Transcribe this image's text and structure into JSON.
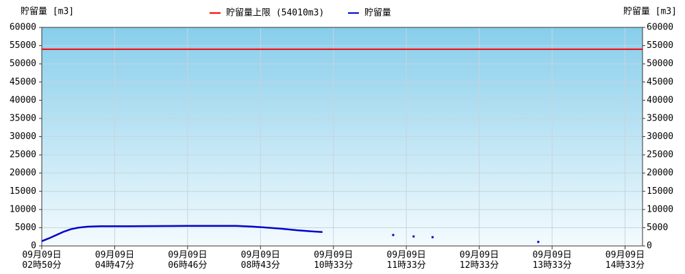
{
  "chart_data": {
    "type": "line",
    "y_label": "貯留量 [m3]",
    "y2_label": "貯留量 [m3]",
    "limit": {
      "name": "貯留量上限 (54010m3)",
      "value": 54010,
      "color": "#ff0000"
    },
    "x": [
      0,
      10,
      20,
      30,
      40,
      50,
      63,
      80,
      120,
      160,
      200,
      240,
      267,
      290,
      310,
      330,
      350,
      370,
      385,
      386,
      482,
      483,
      510,
      511,
      536,
      537,
      681
    ],
    "series": [
      {
        "name": "貯留量",
        "color": "#0000cc",
        "values": [
          1300,
          2100,
          3000,
          3900,
          4600,
          5000,
          5300,
          5400,
          5400,
          5450,
          5500,
          5500,
          5500,
          5300,
          5000,
          4700,
          4300,
          4000,
          3800,
          null,
          3000,
          null,
          2600,
          null,
          2400,
          null,
          1100
        ]
      }
    ],
    "xlim": [
      0,
      824
    ],
    "xticks": [
      {
        "value": 0,
        "label": "09月09日\n02時50分"
      },
      {
        "value": 100,
        "label": "09月09日\n04時47分"
      },
      {
        "value": 200,
        "label": "09月09日\n06時46分"
      },
      {
        "value": 300,
        "label": "09月09日\n08時43分"
      },
      {
        "value": 400,
        "label": "09月09日\n10時33分"
      },
      {
        "value": 500,
        "label": "09月09日\n11時33分"
      },
      {
        "value": 600,
        "label": "09月09日\n12時33分"
      },
      {
        "value": 700,
        "label": "09月09日\n13時33分"
      },
      {
        "value": 800,
        "label": "09月09日\n14時33分"
      }
    ],
    "ylim": [
      0,
      60000
    ],
    "yticks": [
      0,
      5000,
      10000,
      15000,
      20000,
      25000,
      30000,
      35000,
      40000,
      45000,
      50000,
      55000,
      60000
    ],
    "y2lim": [
      0,
      60000
    ],
    "y2ticks": [
      0,
      5000,
      10000,
      15000,
      20000,
      25000,
      30000,
      35000,
      40000,
      45000,
      50000,
      55000,
      60000
    ],
    "grid": true
  }
}
